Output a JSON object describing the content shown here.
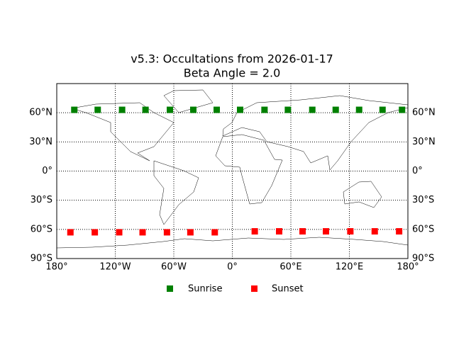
{
  "chart_data": {
    "type": "scatter",
    "title": "v5.3: Occultations from 2026-01-17",
    "subtitle": "Beta Angle = 2.0",
    "xlim": [
      -180,
      180
    ],
    "ylim": [
      -90,
      90
    ],
    "xticks": [
      {
        "value": -180,
        "label": "180°"
      },
      {
        "value": -120,
        "label": "120°W"
      },
      {
        "value": -60,
        "label": "60°W"
      },
      {
        "value": 0,
        "label": "0°"
      },
      {
        "value": 60,
        "label": "60°E"
      },
      {
        "value": 120,
        "label": "120°E"
      },
      {
        "value": 180,
        "label": "180°"
      }
    ],
    "yticks": [
      {
        "value": -90,
        "label": "90°S"
      },
      {
        "value": -60,
        "label": "60°S"
      },
      {
        "value": -30,
        "label": "30°S"
      },
      {
        "value": 0,
        "label": "0°"
      },
      {
        "value": 30,
        "label": "30°N"
      },
      {
        "value": 60,
        "label": "60°N"
      }
    ],
    "grid": true,
    "series": [
      {
        "name": "Sunrise",
        "color": "#008000",
        "x": [
          -162,
          -138,
          -113,
          -89,
          -64,
          -40,
          -16,
          8,
          33,
          57,
          82,
          106,
          130,
          154,
          174
        ],
        "values": [
          63,
          63,
          63,
          63,
          63,
          63,
          63,
          63,
          63,
          63,
          63,
          63,
          63,
          63,
          63
        ]
      },
      {
        "name": "Sunset",
        "color": "#ff0000",
        "x": [
          -166,
          -141,
          -116,
          -92,
          -67,
          -43,
          -18,
          23,
          48,
          72,
          96,
          121,
          146,
          171
        ],
        "values": [
          -63,
          -63,
          -63,
          -63,
          -63,
          -63,
          -63,
          -62,
          -62,
          -62,
          -62,
          -62,
          -62,
          -62
        ]
      }
    ]
  }
}
